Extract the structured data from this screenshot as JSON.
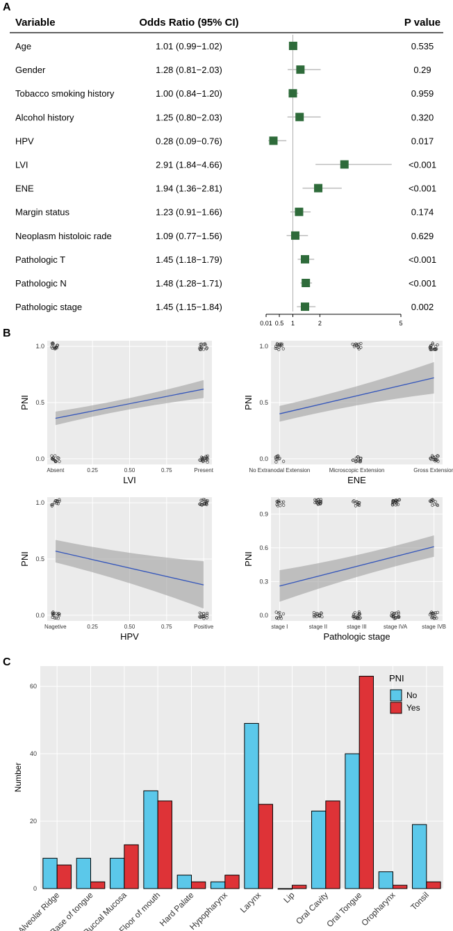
{
  "panels": {
    "a": "A",
    "b": "B",
    "c": "C"
  },
  "forest": {
    "header": {
      "variable": "Variable",
      "or": "Odds Ratio (95% CI)",
      "p": "P value"
    },
    "rows": [
      {
        "variable": "Age",
        "or_text": "1.01 (0.99−1.02)",
        "or": 1.01,
        "lo": 0.99,
        "hi": 1.02,
        "p": "0.535"
      },
      {
        "variable": "Gender",
        "or_text": "1.28 (0.81−2.03)",
        "or": 1.28,
        "lo": 0.81,
        "hi": 2.03,
        "p": "0.29"
      },
      {
        "variable": "Tobacco smoking history",
        "or_text": "1.00 (0.84−1.20)",
        "or": 1.0,
        "lo": 0.84,
        "hi": 1.2,
        "p": "0.959"
      },
      {
        "variable": "Alcohol history",
        "or_text": "1.25 (0.80−2.03)",
        "or": 1.25,
        "lo": 0.8,
        "hi": 2.03,
        "p": "0.320"
      },
      {
        "variable": "HPV",
        "or_text": "0.28 (0.09−0.76)",
        "or": 0.28,
        "lo": 0.09,
        "hi": 0.76,
        "p": "0.017"
      },
      {
        "variable": "LVI",
        "or_text": "2.91 (1.84−4.66)",
        "or": 2.91,
        "lo": 1.84,
        "hi": 4.66,
        "p": "<0.001"
      },
      {
        "variable": "ENE",
        "or_text": "1.94 (1.36−2.81)",
        "or": 1.94,
        "lo": 1.36,
        "hi": 2.81,
        "p": "<0.001"
      },
      {
        "variable": "Margin status",
        "or_text": "1.23 (0.91−1.66)",
        "or": 1.23,
        "lo": 0.91,
        "hi": 1.66,
        "p": "0.174"
      },
      {
        "variable": "Neoplasm histoloic rade",
        "or_text": "1.09 (0.77−1.56)",
        "or": 1.09,
        "lo": 0.77,
        "hi": 1.56,
        "p": "0.629"
      },
      {
        "variable": "Pathologic T",
        "or_text": "1.45 (1.18−1.79)",
        "or": 1.45,
        "lo": 1.18,
        "hi": 1.79,
        "p": "<0.001"
      },
      {
        "variable": "Pathologic N",
        "or_text": "1.48 (1.28−1.71)",
        "or": 1.48,
        "lo": 1.28,
        "hi": 1.71,
        "p": "<0.001"
      },
      {
        "variable": "Pathologic stage",
        "or_text": "1.45 (1.15−1.84)",
        "or": 1.45,
        "lo": 1.15,
        "hi": 1.84,
        "p": "0.002"
      }
    ],
    "axis_ticks": [
      "0.01",
      "0.5",
      "1",
      "2",
      "5"
    ],
    "colors": {
      "marker": "#2e6b3a",
      "ci": "#bdbdbd",
      "ref": "#b0b0b0"
    }
  },
  "chart_data": [
    {
      "type": "forest",
      "title": "",
      "xlabel": "",
      "xlim": [
        0,
        5
      ],
      "note": "values in forest.rows"
    },
    {
      "type": "scatter",
      "xlabel": "LVI",
      "ylabel": "PNI",
      "categories": [
        "Absent",
        "Present"
      ],
      "xticks": [
        "Absent",
        "0.25",
        "0.50",
        "0.75",
        "Present"
      ],
      "yticks": [
        "0.0",
        "0.5",
        "1.0"
      ],
      "ylim": [
        -0.05,
        1.05
      ],
      "fit": {
        "y0": 0.36,
        "y1": 0.62,
        "lo0": 0.3,
        "hi0": 0.42,
        "lo1": 0.54,
        "hi1": 0.7
      }
    },
    {
      "type": "scatter",
      "xlabel": "ENE",
      "ylabel": "PNI",
      "categories": [
        "No Extranodal Extension",
        "Microscopic Extension",
        "Gross Extension"
      ],
      "xticks": [
        "No Extranodal Extension",
        "Microscopic Extension",
        "Gross Extension"
      ],
      "yticks": [
        "0.0",
        "0.5",
        "1.0"
      ],
      "ylim": [
        -0.05,
        1.05
      ],
      "fit": {
        "y0": 0.4,
        "y1": 0.72,
        "lo0": 0.33,
        "hi0": 0.47,
        "lo1": 0.58,
        "hi1": 0.86
      }
    },
    {
      "type": "scatter",
      "xlabel": "HPV",
      "ylabel": "PNI",
      "categories": [
        "Nagetive",
        "Positive"
      ],
      "xticks": [
        "Nagetive",
        "0.25",
        "0.50",
        "0.75",
        "Positive"
      ],
      "yticks": [
        "0.0",
        "0.5",
        "1.0"
      ],
      "ylim": [
        -0.05,
        1.05
      ],
      "fit": {
        "y0": 0.57,
        "y1": 0.27,
        "lo0": 0.47,
        "hi0": 0.67,
        "lo1": 0.06,
        "hi1": 0.48
      }
    },
    {
      "type": "scatter",
      "xlabel": "Pathologic stage",
      "ylabel": "PNI",
      "categories": [
        "stage I",
        "stage II",
        "stage III",
        "stage IVA",
        "stage IVB"
      ],
      "xticks": [
        "stage I",
        "stage II",
        "stage III",
        "stage IVA",
        "stage IVB"
      ],
      "yticks": [
        "0.0",
        "0.3",
        "0.6",
        "0.9"
      ],
      "ylim": [
        -0.05,
        1.05
      ],
      "fit": {
        "y0": 0.26,
        "y1": 0.61,
        "lo0": 0.12,
        "hi0": 0.4,
        "lo1": 0.52,
        "hi1": 0.71
      }
    },
    {
      "type": "bar",
      "title": "",
      "xlabel": "",
      "ylabel": "Number",
      "categories": [
        "Alveolar Ridge",
        "Base of tongue",
        "Buccal Mucosa",
        "Floor of mouth",
        "Hard Palate",
        "Hypopharynx",
        "Larynx",
        "Lip",
        "Oral Cavity",
        "Oral Tongue",
        "Oropharynx",
        "Tonsil"
      ],
      "series": [
        {
          "name": "No",
          "color": "#5bc8ea",
          "values": [
            9,
            9,
            9,
            29,
            4,
            2,
            49,
            0,
            23,
            40,
            5,
            19
          ]
        },
        {
          "name": "Yes",
          "color": "#de3337",
          "values": [
            7,
            2,
            13,
            26,
            2,
            4,
            25,
            1,
            26,
            63,
            1,
            2
          ]
        }
      ],
      "yticks": [
        "0",
        "20",
        "40",
        "60"
      ],
      "ylim": [
        0,
        66
      ],
      "legend": {
        "title": "PNI",
        "position": "top-right"
      }
    }
  ],
  "colors": {
    "panel_bg": "#ebebeb",
    "grid": "#ffffff",
    "fit_line": "#3355bb",
    "ribbon": "#999999"
  }
}
